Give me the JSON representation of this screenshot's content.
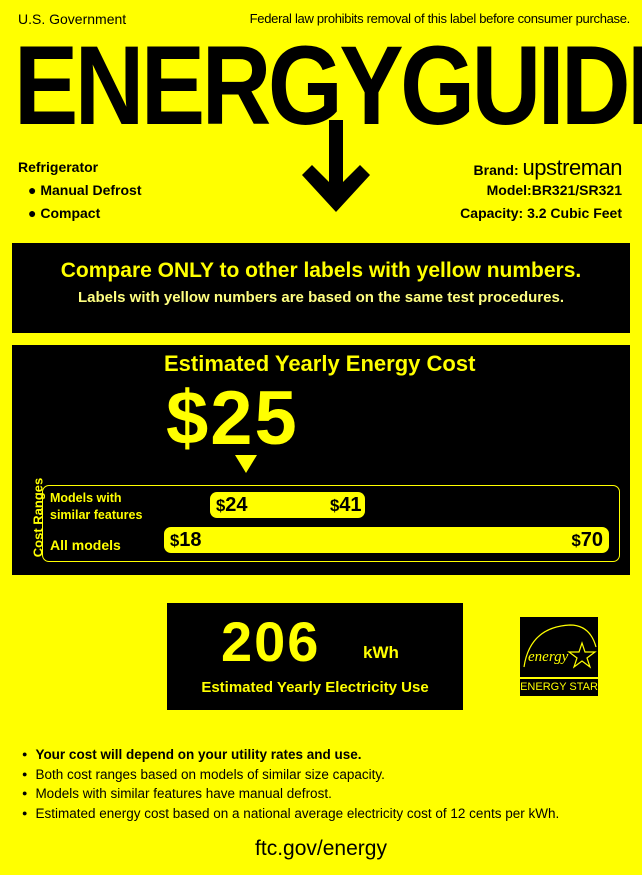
{
  "header": {
    "left": "U.S. Government",
    "right": "Federal law prohibits removal of this label before consumer purchase.",
    "title": "ENERGYGUIDE"
  },
  "product": {
    "type": "Refrigerator",
    "features": [
      "Manual Defrost",
      "Compact"
    ]
  },
  "specs": {
    "brand_label": "Brand:",
    "brand": "upstreman",
    "model": "Model:BR321/SR321",
    "capacity": "Capacity: 3.2 Cubic Feet"
  },
  "compare": {
    "line1": "Compare ONLY to other labels with yellow numbers.",
    "line2": "Labels with yellow numbers are based on the same test procedures."
  },
  "cost": {
    "title": "Estimated Yearly Energy Cost",
    "value": "$25",
    "ranges_label": "Cost Ranges",
    "similar": {
      "label1": "Models with",
      "label2": "similar features",
      "low": "24",
      "high": "41"
    },
    "all": {
      "label": "All models",
      "low": "18",
      "high": "70"
    }
  },
  "electricity": {
    "value": "206",
    "unit": "kWh",
    "label": "Estimated Yearly Electricity Use"
  },
  "energy_star": {
    "logo_text": "energy",
    "label": "ENERGY STAR"
  },
  "notes": [
    "Your cost will depend on your utility rates and use.",
    "Both cost ranges based on models of similar size capacity.",
    "Models with similar features have manual defrost.",
    "Estimated energy cost based on a national average electricity cost of 12 cents per kWh."
  ],
  "footer": "ftc.gov/energy",
  "colors": {
    "background": "#ffff00",
    "panel": "#000000"
  }
}
